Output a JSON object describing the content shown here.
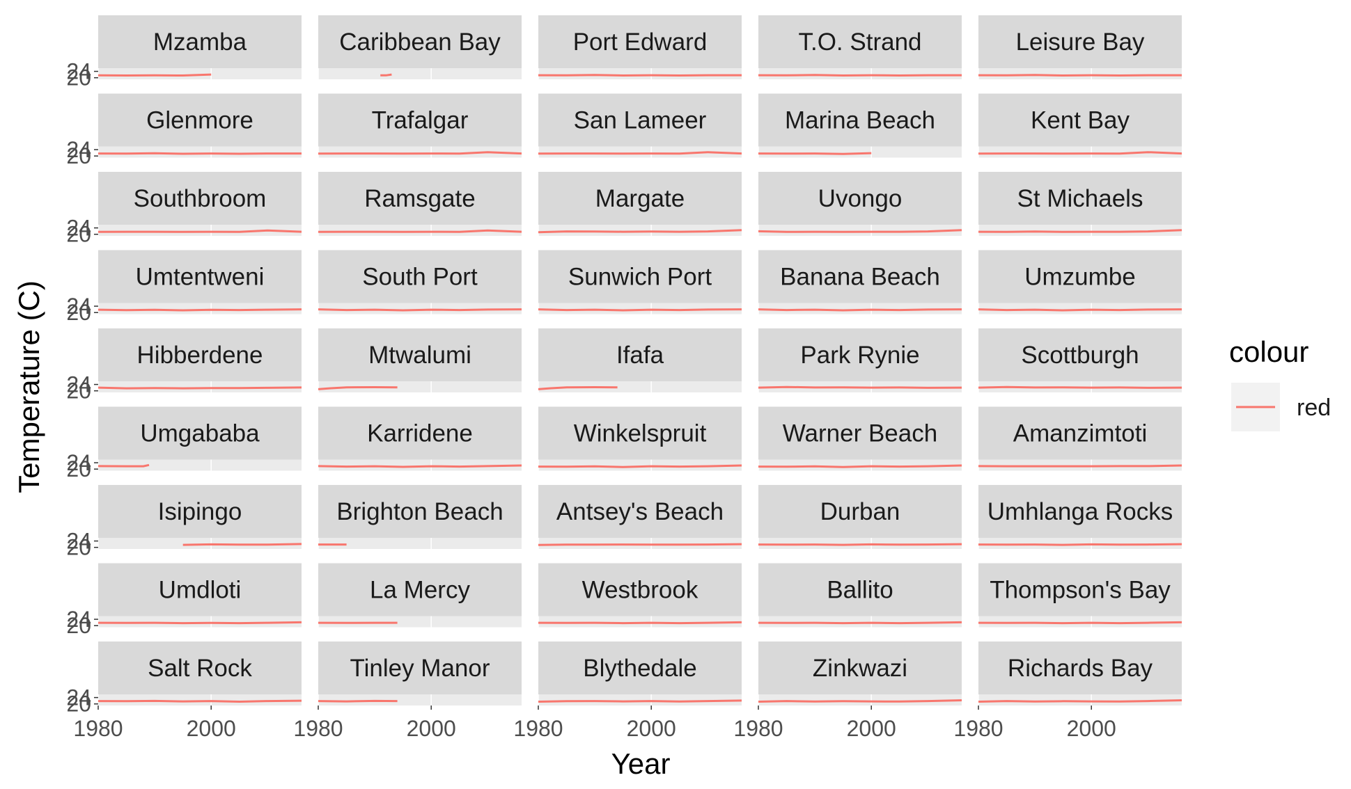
{
  "chart_data": {
    "type": "line",
    "xlabel": "Year",
    "ylabel": "Temperature (C)",
    "xlim": [
      1980,
      2016
    ],
    "ylim": [
      19,
      26
    ],
    "x_ticks": [
      "1980",
      "2000"
    ],
    "y_ticks": [
      "20",
      "24"
    ],
    "legend": {
      "title": "colour",
      "placement": "right",
      "entries": [
        {
          "label": "red",
          "color": "#F8766D"
        }
      ]
    },
    "colors": {
      "series": "#F8766D",
      "strip": "#d9d9d9",
      "panel": "#ebebeb",
      "grid": "#ffffff"
    },
    "panels": [
      {
        "site": "Mzamba",
        "x": [
          1980,
          1985,
          1990,
          1995,
          2000
        ],
        "values": [
          21.5,
          21.4,
          21.5,
          21.4,
          22.0
        ]
      },
      {
        "site": "Caribbean Bay",
        "x": [
          1991,
          1992,
          1993
        ],
        "values": [
          21.5,
          21.5,
          22.0
        ]
      },
      {
        "site": "Port Edward",
        "x": [
          1980,
          1985,
          1990,
          1995,
          2000,
          2005,
          2010,
          2016
        ],
        "values": [
          21.6,
          21.5,
          21.7,
          21.4,
          21.6,
          21.4,
          21.6,
          21.6
        ]
      },
      {
        "site": "T.O. Strand",
        "x": [
          1980,
          1985,
          1990,
          1995,
          2000,
          2005,
          2010,
          2016
        ],
        "values": [
          21.6,
          21.5,
          21.7,
          21.4,
          21.6,
          21.4,
          21.6,
          21.6
        ]
      },
      {
        "site": "Leisure Bay",
        "x": [
          1980,
          1985,
          1990,
          1995,
          2000,
          2005,
          2010,
          2016
        ],
        "values": [
          21.6,
          21.5,
          21.7,
          21.4,
          21.6,
          21.4,
          21.6,
          21.6
        ]
      },
      {
        "site": "Glenmore",
        "x": [
          1980,
          1985,
          1990,
          1995,
          2000,
          2005,
          2010,
          2016
        ],
        "values": [
          21.6,
          21.5,
          21.7,
          21.4,
          21.6,
          21.4,
          21.6,
          21.6
        ]
      },
      {
        "site": "Trafalgar",
        "x": [
          1980,
          1985,
          1990,
          1995,
          2000,
          2005,
          2010,
          2016
        ],
        "values": [
          21.5,
          21.6,
          21.6,
          21.5,
          21.6,
          21.5,
          22.4,
          21.6
        ]
      },
      {
        "site": "San Lameer",
        "x": [
          1980,
          1985,
          1990,
          1995,
          2000,
          2005,
          2010,
          2016
        ],
        "values": [
          21.5,
          21.6,
          21.6,
          21.5,
          21.6,
          21.5,
          22.4,
          21.6
        ]
      },
      {
        "site": "Marina Beach",
        "x": [
          1980,
          1985,
          1990,
          1995,
          2000
        ],
        "values": [
          21.6,
          21.5,
          21.6,
          21.3,
          21.8
        ]
      },
      {
        "site": "Kent Bay",
        "x": [
          1980,
          1985,
          1990,
          1995,
          2000,
          2005,
          2010,
          2016
        ],
        "values": [
          21.5,
          21.6,
          21.6,
          21.5,
          21.6,
          21.5,
          22.4,
          21.6
        ]
      },
      {
        "site": "Southbroom",
        "x": [
          1980,
          1985,
          1990,
          1995,
          2000,
          2005,
          2010,
          2016
        ],
        "values": [
          21.5,
          21.6,
          21.6,
          21.5,
          21.6,
          21.5,
          22.4,
          21.6
        ]
      },
      {
        "site": "Ramsgate",
        "x": [
          1980,
          1985,
          1990,
          1995,
          2000,
          2005,
          2010,
          2016
        ],
        "values": [
          21.5,
          21.6,
          21.6,
          21.5,
          21.6,
          21.5,
          22.4,
          21.6
        ]
      },
      {
        "site": "Margate",
        "x": [
          1980,
          1985,
          1990,
          1995,
          2000,
          2005,
          2010,
          2016
        ],
        "values": [
          21.3,
          21.8,
          21.7,
          21.6,
          21.7,
          21.6,
          21.8,
          22.6
        ]
      },
      {
        "site": "Uvongo",
        "x": [
          1980,
          1985,
          1990,
          1995,
          2000,
          2005,
          2010,
          2016
        ],
        "values": [
          21.9,
          21.5,
          21.6,
          21.5,
          21.6,
          21.6,
          21.8,
          22.6
        ]
      },
      {
        "site": "St Michaels",
        "x": [
          1980,
          1985,
          1990,
          1995,
          2000,
          2005,
          2010,
          2016
        ],
        "values": [
          21.6,
          21.5,
          21.7,
          21.5,
          21.6,
          21.6,
          21.8,
          22.6
        ]
      },
      {
        "site": "Umtentweni",
        "x": [
          1980,
          1985,
          1990,
          1995,
          2000,
          2005,
          2010,
          2016
        ],
        "values": [
          21.8,
          21.5,
          21.7,
          21.4,
          21.7,
          21.6,
          21.8,
          22.0
        ]
      },
      {
        "site": "South Port",
        "x": [
          1980,
          1985,
          1990,
          1995,
          2000,
          2005,
          2010,
          2016
        ],
        "values": [
          22.0,
          21.6,
          21.8,
          21.4,
          21.8,
          21.6,
          21.9,
          22.0
        ]
      },
      {
        "site": "Sunwich Port",
        "x": [
          1980,
          1985,
          1990,
          1995,
          2000,
          2005,
          2010,
          2016
        ],
        "values": [
          22.0,
          21.6,
          21.8,
          21.4,
          21.8,
          21.6,
          21.9,
          22.0
        ]
      },
      {
        "site": "Banana Beach",
        "x": [
          1980,
          1985,
          1990,
          1995,
          2000,
          2005,
          2010,
          2016
        ],
        "values": [
          22.0,
          21.6,
          21.8,
          21.4,
          21.8,
          21.6,
          21.9,
          22.0
        ]
      },
      {
        "site": "Umzumbe",
        "x": [
          1980,
          1985,
          1990,
          1995,
          2000,
          2005,
          2010,
          2016
        ],
        "values": [
          22.0,
          21.6,
          21.8,
          21.4,
          21.8,
          21.6,
          21.9,
          22.0
        ]
      },
      {
        "site": "Hibberdene",
        "x": [
          1980,
          1985,
          1990,
          1995,
          2000,
          2005,
          2010,
          2016
        ],
        "values": [
          22.0,
          21.6,
          21.7,
          21.6,
          21.7,
          21.7,
          21.9,
          22.1
        ]
      },
      {
        "site": "Mtwalumi",
        "x": [
          1980,
          1982,
          1985,
          1990,
          1994
        ],
        "values": [
          21.0,
          21.6,
          22.2,
          22.3,
          22.2
        ]
      },
      {
        "site": "Ifafa",
        "x": [
          1980,
          1982,
          1985,
          1990,
          1994
        ],
        "values": [
          21.0,
          21.6,
          22.2,
          22.3,
          22.2
        ]
      },
      {
        "site": "Park Rynie",
        "x": [
          1980,
          1985,
          1990,
          1995,
          2000,
          2005,
          2010,
          2016
        ],
        "values": [
          22.0,
          22.4,
          22.1,
          22.2,
          22.0,
          22.1,
          21.9,
          22.0
        ]
      },
      {
        "site": "Scottburgh",
        "x": [
          1980,
          1985,
          1990,
          1995,
          2000,
          2005,
          2010,
          2016
        ],
        "values": [
          22.0,
          22.4,
          22.1,
          22.2,
          22.0,
          22.1,
          21.9,
          22.0
        ]
      },
      {
        "site": "Umgababa",
        "x": [
          1980,
          1985,
          1988,
          1989
        ],
        "values": [
          21.9,
          21.8,
          21.8,
          22.6
        ]
      },
      {
        "site": "Karridene",
        "x": [
          1980,
          1985,
          1990,
          1995,
          2000,
          2005,
          2010,
          2016
        ],
        "values": [
          21.9,
          21.6,
          21.8,
          21.4,
          21.8,
          21.6,
          21.9,
          22.3
        ]
      },
      {
        "site": "Winkelspruit",
        "x": [
          1980,
          1985,
          1990,
          1995,
          2000,
          2005,
          2010,
          2016
        ],
        "values": [
          21.6,
          21.5,
          21.7,
          21.3,
          21.8,
          21.6,
          21.8,
          22.3
        ]
      },
      {
        "site": "Warner Beach",
        "x": [
          1980,
          1985,
          1990,
          1995,
          2000,
          2005,
          2010,
          2016
        ],
        "values": [
          21.6,
          21.5,
          21.7,
          21.3,
          21.8,
          21.6,
          21.8,
          22.3
        ]
      },
      {
        "site": "Amanzimtoti",
        "x": [
          1980,
          1985,
          1990,
          1995,
          2000,
          2005,
          2010,
          2016
        ],
        "values": [
          21.9,
          21.8,
          21.8,
          21.8,
          21.8,
          21.9,
          21.9,
          22.3
        ]
      },
      {
        "site": "Isipingo",
        "x": [
          1995,
          2000,
          2005,
          2010,
          2016
        ],
        "values": [
          21.6,
          21.9,
          21.7,
          21.7,
          22.1
        ]
      },
      {
        "site": "Brighton Beach",
        "x": [
          1980,
          1985
        ],
        "values": [
          21.8,
          21.8
        ]
      },
      {
        "site": "Antsey's Beach",
        "x": [
          1980,
          1985,
          1990,
          1995,
          2000,
          2005,
          2010,
          2016
        ],
        "values": [
          21.5,
          21.7,
          21.7,
          21.8,
          21.7,
          21.7,
          21.8,
          22.0
        ]
      },
      {
        "site": "Durban",
        "x": [
          1980,
          1985,
          1990,
          1995,
          2000,
          2005,
          2010,
          2016
        ],
        "values": [
          21.8,
          21.7,
          21.8,
          21.6,
          21.9,
          21.7,
          21.8,
          22.0
        ]
      },
      {
        "site": "Umhlanga Rocks",
        "x": [
          1980,
          1985,
          1990,
          1995,
          2000,
          2005,
          2010,
          2016
        ],
        "values": [
          21.8,
          21.7,
          21.8,
          21.6,
          21.9,
          21.7,
          21.8,
          22.0
        ]
      },
      {
        "site": "Umdloti",
        "x": [
          1980,
          1985,
          1990,
          1995,
          2000,
          2005,
          2010,
          2016
        ],
        "values": [
          21.8,
          21.7,
          21.8,
          21.6,
          21.7,
          21.6,
          21.8,
          22.1
        ]
      },
      {
        "site": "La Mercy",
        "x": [
          1980,
          1985,
          1990,
          1994
        ],
        "values": [
          21.8,
          21.7,
          21.8,
          21.8
        ]
      },
      {
        "site": "Westbrook",
        "x": [
          1980,
          1985,
          1990,
          1995,
          2000,
          2005,
          2010,
          2016
        ],
        "values": [
          21.8,
          21.7,
          21.8,
          21.6,
          21.8,
          21.6,
          21.8,
          22.1
        ]
      },
      {
        "site": "Ballito",
        "x": [
          1980,
          1985,
          1990,
          1995,
          2000,
          2005,
          2010,
          2016
        ],
        "values": [
          21.8,
          21.7,
          21.8,
          21.6,
          21.8,
          21.6,
          21.8,
          22.1
        ]
      },
      {
        "site": "Thompson's Bay",
        "x": [
          1980,
          1985,
          1990,
          1995,
          2000,
          2005,
          2010,
          2016
        ],
        "values": [
          21.8,
          21.7,
          21.8,
          21.6,
          21.8,
          21.6,
          21.8,
          22.1
        ]
      },
      {
        "site": "Salt Rock",
        "x": [
          1980,
          1985,
          1990,
          1995,
          2000,
          2005,
          2010,
          2016
        ],
        "values": [
          21.8,
          21.7,
          21.9,
          21.6,
          21.8,
          21.4,
          21.8,
          22.0
        ]
      },
      {
        "site": "Tinley Manor",
        "x": [
          1980,
          1985,
          1990,
          1994
        ],
        "values": [
          21.8,
          21.6,
          21.9,
          21.8
        ]
      },
      {
        "site": "Blythedale",
        "x": [
          1980,
          1985,
          1990,
          1995,
          2000,
          2005,
          2010,
          2016
        ],
        "values": [
          21.4,
          21.7,
          21.8,
          21.6,
          21.8,
          21.5,
          21.8,
          22.1
        ]
      },
      {
        "site": "Zinkwazi",
        "x": [
          1980,
          1985,
          1990,
          1995,
          2000,
          2005,
          2010,
          2016
        ],
        "values": [
          21.4,
          21.8,
          21.5,
          21.7,
          21.6,
          21.5,
          21.8,
          22.3
        ]
      },
      {
        "site": "Richards Bay",
        "x": [
          1980,
          1985,
          1990,
          1995,
          2000,
          2005,
          2010,
          2016
        ],
        "values": [
          21.4,
          21.8,
          21.5,
          21.7,
          21.6,
          21.5,
          21.8,
          22.3
        ]
      }
    ]
  }
}
